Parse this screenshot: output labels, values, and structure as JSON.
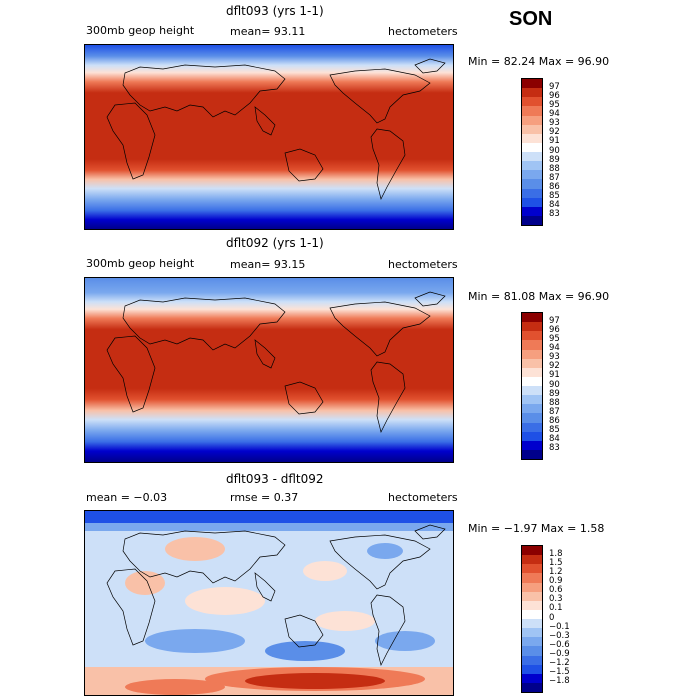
{
  "season": "SON",
  "palette_levels": {
    "abs": [
      "#00008b",
      "#0000cd",
      "#1e50e6",
      "#3a6ee6",
      "#5a8ee8",
      "#7aa8ee",
      "#a0c4f4",
      "#cde0f8",
      "#ffffff",
      "#fde2d6",
      "#f9c1a8",
      "#f69f7f",
      "#ef7a57",
      "#e1512f",
      "#c52d12",
      "#8b0000"
    ],
    "diff": [
      "#00008b",
      "#0000cd",
      "#1e50e6",
      "#3a6ee6",
      "#5a8ee8",
      "#7aa8ee",
      "#a0c4f4",
      "#cde0f8",
      "#ffffff",
      "#fde2d6",
      "#f9c1a8",
      "#f69f7f",
      "#ef7a57",
      "#e1512f",
      "#c52d12",
      "#8b0000"
    ]
  },
  "panels": [
    {
      "title": "dflt093 (yrs 1-1)",
      "left_text": "300mb geop height",
      "mid_text": "mean=  93.11",
      "units": "hectometers",
      "minmax": "Min =  82.24 Max =  96.90",
      "labels": [
        "97",
        "96",
        "95",
        "94",
        "93",
        "92",
        "91",
        "90",
        "89",
        "88",
        "87",
        "86",
        "85",
        "84",
        "83"
      ]
    },
    {
      "title": "dflt092 (yrs 1-1)",
      "left_text": "300mb geop height",
      "mid_text": "mean=  93.15",
      "units": "hectometers",
      "minmax": "Min =  81.08 Max =  96.90",
      "labels": [
        "97",
        "96",
        "95",
        "94",
        "93",
        "92",
        "91",
        "90",
        "89",
        "88",
        "87",
        "86",
        "85",
        "84",
        "83"
      ]
    },
    {
      "title": "dflt093 - dflt092",
      "left_text": "mean =  −0.03",
      "mid_text": "rmse =   0.37",
      "units": "hectometers",
      "minmax": "Min = −1.97 Max =   1.58",
      "labels": [
        "1.8",
        "1.5",
        "1.2",
        "0.9",
        "0.6",
        "0.3",
        "0.1",
        "0",
        "−0.1",
        "−0.3",
        "−0.6",
        "−0.9",
        "−1.2",
        "−1.5",
        "−1.8"
      ]
    }
  ]
}
